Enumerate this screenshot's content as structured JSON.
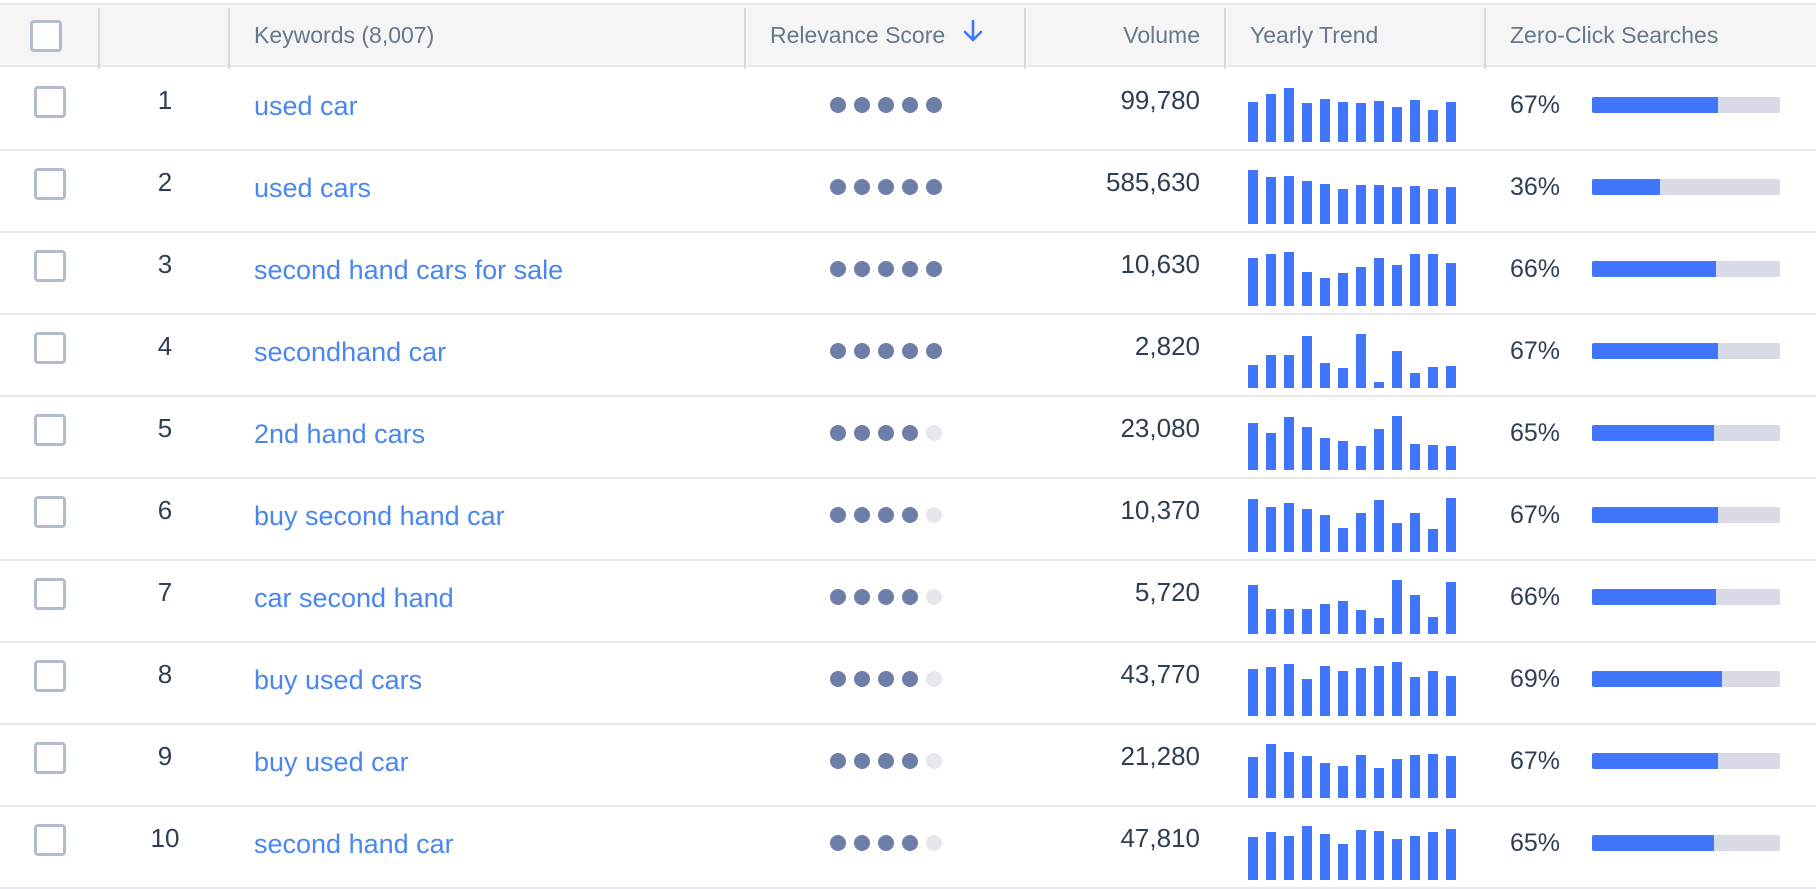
{
  "colors": {
    "accent": "#3f76fb",
    "link": "#4a86f0",
    "dot_filled": "#6f7ea9",
    "dot_empty": "#e6e7ec",
    "track": "#d8dbe6",
    "header_bg": "#f5f5f6",
    "header_text": "#66788a",
    "body_text": "#2f3f53"
  },
  "header": {
    "keywords_label": "Keywords (8,007)",
    "relevance_label": "Relevance Score",
    "relevance_sort_icon": "arrow-down-icon",
    "volume_label": "Volume",
    "trend_label": "Yearly Trend",
    "zero_click_label": "Zero-Click Searches"
  },
  "rows": [
    {
      "index": "1",
      "keyword": "used car",
      "relevance": 5,
      "volume": "99,780",
      "trend": [
        74,
        89,
        100,
        72,
        79,
        74,
        72,
        75,
        64,
        77,
        60,
        74
      ],
      "zero_click": "67%",
      "zero_click_value": 67
    },
    {
      "index": "2",
      "keyword": "used cars",
      "relevance": 5,
      "volume": "585,630",
      "trend": [
        100,
        87,
        89,
        79,
        74,
        64,
        72,
        72,
        68,
        70,
        64,
        68
      ],
      "zero_click": "36%",
      "zero_click_value": 36
    },
    {
      "index": "3",
      "keyword": "second hand cars for sale",
      "relevance": 5,
      "volume": "10,630",
      "trend": [
        89,
        96,
        100,
        63,
        51,
        61,
        72,
        89,
        75,
        96,
        96,
        79
      ],
      "zero_click": "66%",
      "zero_click_value": 66
    },
    {
      "index": "4",
      "keyword": "secondhand car",
      "relevance": 5,
      "volume": "2,820",
      "trend": [
        42,
        61,
        61,
        96,
        46,
        37,
        100,
        12,
        68,
        27,
        38,
        40
      ],
      "zero_click": "67%",
      "zero_click_value": 67
    },
    {
      "index": "5",
      "keyword": "2nd hand cars",
      "relevance": 4,
      "volume": "23,080",
      "trend": [
        87,
        68,
        98,
        79,
        59,
        53,
        44,
        75,
        100,
        49,
        46,
        44
      ],
      "zero_click": "65%",
      "zero_click_value": 65
    },
    {
      "index": "6",
      "keyword": "buy second hand car",
      "relevance": 4,
      "volume": "10,370",
      "trend": [
        98,
        83,
        90,
        79,
        68,
        44,
        73,
        96,
        53,
        72,
        42,
        100
      ],
      "zero_click": "67%",
      "zero_click_value": 67
    },
    {
      "index": "7",
      "keyword": "car second hand",
      "relevance": 4,
      "volume": "5,720",
      "trend": [
        91,
        46,
        47,
        47,
        55,
        62,
        44,
        29,
        100,
        72,
        31,
        96
      ],
      "zero_click": "66%",
      "zero_click_value": 66
    },
    {
      "index": "8",
      "keyword": "buy used cars",
      "relevance": 4,
      "volume": "43,770",
      "trend": [
        87,
        90,
        96,
        68,
        92,
        84,
        88,
        92,
        100,
        72,
        83,
        74
      ],
      "zero_click": "69%",
      "zero_click_value": 69
    },
    {
      "index": "9",
      "keyword": "buy used car",
      "relevance": 4,
      "volume": "21,280",
      "trend": [
        76,
        100,
        85,
        78,
        64,
        59,
        79,
        55,
        73,
        79,
        81,
        77
      ],
      "zero_click": "67%",
      "zero_click_value": 67
    },
    {
      "index": "10",
      "keyword": "second hand car",
      "relevance": 4,
      "volume": "47,810",
      "trend": [
        79,
        88,
        81,
        100,
        86,
        66,
        92,
        90,
        75,
        81,
        88,
        94
      ],
      "zero_click": "65%",
      "zero_click_value": 65
    }
  ]
}
